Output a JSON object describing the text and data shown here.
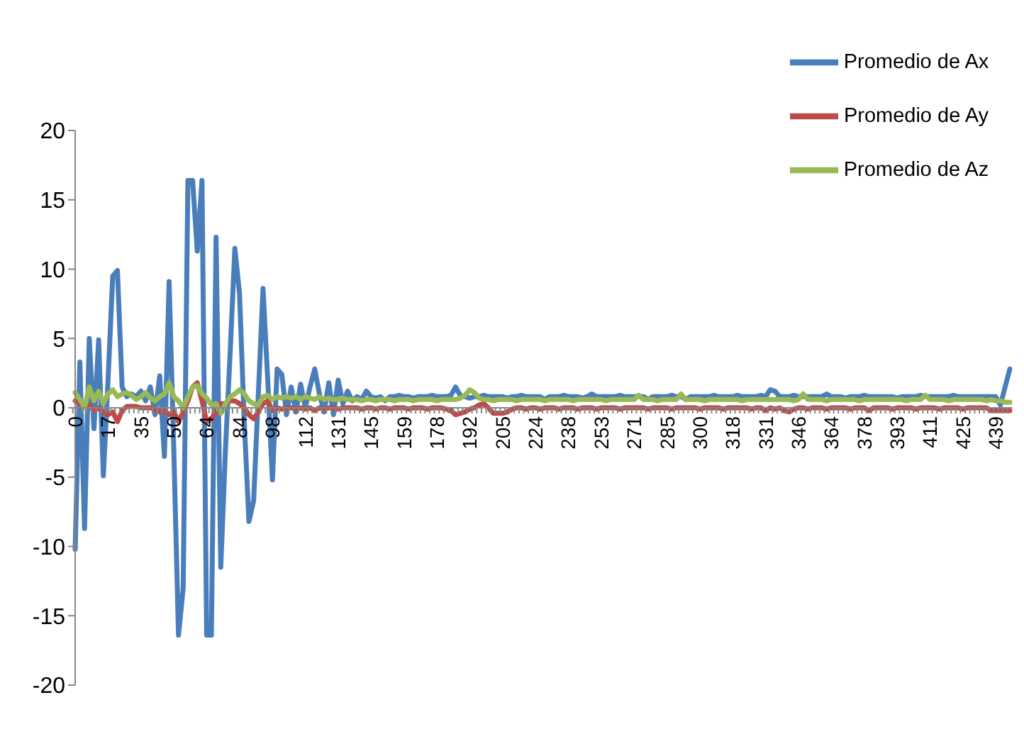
{
  "chart_data": {
    "type": "line",
    "categories": [
      "0",
      null,
      null,
      null,
      null,
      null,
      null,
      "17",
      null,
      null,
      null,
      null,
      null,
      null,
      "35",
      null,
      null,
      null,
      null,
      null,
      null,
      "50",
      null,
      null,
      null,
      null,
      null,
      null,
      "64",
      null,
      null,
      null,
      null,
      null,
      null,
      "84",
      null,
      null,
      null,
      null,
      null,
      null,
      "98",
      null,
      null,
      null,
      null,
      null,
      null,
      "112",
      null,
      null,
      null,
      null,
      null,
      null,
      "131",
      null,
      null,
      null,
      null,
      null,
      null,
      "145",
      null,
      null,
      null,
      null,
      null,
      null,
      "159",
      null,
      null,
      null,
      null,
      null,
      null,
      "178",
      null,
      null,
      null,
      null,
      null,
      null,
      "192",
      null,
      null,
      null,
      null,
      null,
      null,
      "205",
      null,
      null,
      null,
      null,
      null,
      null,
      "224",
      null,
      null,
      null,
      null,
      null,
      null,
      "238",
      null,
      null,
      null,
      null,
      null,
      null,
      "253",
      null,
      null,
      null,
      null,
      null,
      null,
      "271",
      null,
      null,
      null,
      null,
      null,
      null,
      "285",
      null,
      null,
      null,
      null,
      null,
      null,
      "300",
      null,
      null,
      null,
      null,
      null,
      null,
      "318",
      null,
      null,
      null,
      null,
      null,
      null,
      "331",
      null,
      null,
      null,
      null,
      null,
      null,
      "346",
      null,
      null,
      null,
      null,
      null,
      null,
      "364",
      null,
      null,
      null,
      null,
      null,
      null,
      "378",
      null,
      null,
      null,
      null,
      null,
      null,
      "393",
      null,
      null,
      null,
      null,
      null,
      null,
      "411",
      null,
      null,
      null,
      null,
      null,
      null,
      "425",
      null,
      null,
      null,
      null,
      null,
      null,
      "439",
      null,
      null,
      null
    ],
    "series": [
      {
        "name": "Promedio de Ax",
        "color": "#4a7ebb",
        "values": [
          -10.2,
          3.3,
          -8.7,
          5,
          -1.5,
          4.9,
          -4.9,
          2,
          9.5,
          9.9,
          1.5,
          0.8,
          1,
          0.8,
          1.2,
          0.5,
          1.5,
          -0.5,
          2.3,
          -3.5,
          9.1,
          -3,
          -16.4,
          -13,
          16.4,
          16.4,
          11.3,
          16.4,
          -16.4,
          -16.4,
          12.3,
          -11.5,
          -3,
          4,
          11.5,
          8.2,
          -1,
          -8.2,
          -6.7,
          1,
          8.6,
          2,
          -5.2,
          2.8,
          2.4,
          -0.5,
          1.5,
          -0.3,
          1.7,
          0,
          1.5,
          2.8,
          1,
          -0.3,
          1.8,
          -0.5,
          2,
          0.3,
          1.2,
          0.5,
          0.8,
          0.6,
          1.2,
          0.8,
          0.7,
          0.8,
          0.5,
          0.8,
          0.8,
          0.9,
          0.8,
          0.8,
          0.7,
          0.8,
          0.8,
          0.8,
          0.9,
          0.8,
          0.8,
          0.8,
          0.9,
          1.5,
          0.9,
          0.8,
          0.7,
          0.8,
          0.8,
          0.9,
          0.8,
          0.8,
          0.8,
          0.8,
          0.7,
          0.8,
          0.8,
          0.9,
          0.8,
          0.8,
          0.8,
          0.8,
          0.6,
          0.8,
          0.8,
          0.8,
          0.9,
          0.8,
          0.8,
          0.8,
          0.7,
          0.8,
          1,
          0.8,
          0.8,
          0.8,
          0.8,
          0.8,
          0.9,
          0.8,
          0.8,
          0.8,
          0.8,
          0.8,
          0.6,
          0.8,
          0.8,
          0.8,
          0.8,
          0.9,
          0.8,
          0.8,
          0.6,
          0.8,
          0.8,
          0.8,
          0.8,
          0.8,
          0.9,
          0.8,
          0.8,
          0.8,
          0.8,
          0.9,
          0.8,
          0.8,
          0.8,
          0.8,
          0.9,
          0.8,
          1.3,
          1.2,
          0.8,
          0.8,
          0.8,
          0.9,
          0.8,
          0.8,
          0.8,
          0.8,
          0.8,
          0.8,
          1,
          0.8,
          0.8,
          0.8,
          0.7,
          0.8,
          0.8,
          0.8,
          0.9,
          0.8,
          0.8,
          0.8,
          0.8,
          0.8,
          0.8,
          0.7,
          0.8,
          0.8,
          0.8,
          0.8,
          0.9,
          0.8,
          0.8,
          0.8,
          0.8,
          0.8,
          0.8,
          0.9,
          0.8,
          0.8,
          0.8,
          0.8,
          0.8,
          0.8,
          0.8,
          0.8,
          0.8,
          0.2,
          1.5,
          2.8
        ]
      },
      {
        "name": "Promedio de Ay",
        "color": "#be4b48",
        "values": [
          0.5,
          0.3,
          0,
          0.2,
          -0.2,
          0,
          -0.3,
          -0.5,
          -0.3,
          -1,
          -0.2,
          0.1,
          0.1,
          0.1,
          0,
          0,
          0,
          -0.1,
          -0.3,
          -0.2,
          -0.5,
          -0.3,
          -1,
          -0.3,
          0.5,
          1.5,
          1.8,
          0.5,
          -1,
          -0.8,
          -0.3,
          0.3,
          0.3,
          0.5,
          0.5,
          0.3,
          0,
          -0.5,
          -0.8,
          -0.3,
          0.3,
          0.5,
          -0.2,
          0,
          -0.1,
          0,
          0,
          -0.1,
          0,
          -0.1,
          0,
          -0.2,
          0,
          -0.1,
          0,
          0,
          -0.1,
          0,
          0,
          0,
          0,
          -0.1,
          0,
          0,
          -0.1,
          0,
          0,
          -0.1,
          0,
          0,
          0,
          -0.1,
          0,
          0,
          0,
          -0.1,
          0,
          0,
          0,
          -0.1,
          -0.2,
          -0.5,
          -0.4,
          -0.3,
          -0.1,
          0,
          0.2,
          0.3,
          0,
          -0.4,
          -0.4,
          -0.4,
          -0.3,
          -0.1,
          0,
          0,
          -0.1,
          0,
          0,
          -0.1,
          0,
          0,
          0,
          -0.1,
          0,
          0,
          0,
          -0.1,
          0,
          0,
          0,
          -0.1,
          0,
          0,
          0,
          0,
          -0.1,
          0,
          0,
          0,
          0,
          0,
          -0.1,
          0,
          0,
          0,
          0,
          -0.1,
          0,
          0,
          0,
          0,
          0,
          -0.1,
          0,
          0,
          0,
          0,
          -0.1,
          0,
          0,
          0,
          0,
          0,
          -0.1,
          0,
          0,
          -0.2,
          0,
          -0.1,
          0,
          -0.2,
          -0.3,
          -0.1,
          0,
          0,
          -0.1,
          0,
          0,
          0,
          -0.1,
          0,
          0,
          0,
          0,
          -0.1,
          0,
          0,
          0,
          -0.2,
          0,
          0,
          0,
          0,
          -0.1,
          0,
          0,
          0,
          0,
          -0.1,
          0,
          0,
          0,
          0,
          -0.1,
          0,
          0,
          0,
          0,
          -0.1,
          0,
          0,
          0,
          0,
          0,
          -0.2,
          -0.2,
          -0.2,
          -0.2,
          -0.2
        ]
      },
      {
        "name": "Promedio de Az",
        "color": "#98b954",
        "values": [
          1.1,
          0.6,
          0,
          1.5,
          0.5,
          1.2,
          0.3,
          1,
          1.3,
          0.8,
          1,
          1.1,
          0.9,
          0.6,
          0.8,
          1.1,
          0.7,
          0.5,
          0.8,
          1,
          1.8,
          0.8,
          0.5,
          0,
          0.8,
          1.5,
          1.6,
          1,
          0.7,
          0.2,
          0.3,
          -0.4,
          0.3,
          0.8,
          1,
          1.3,
          1,
          0.5,
          0.3,
          0.2,
          0.8,
          0.9,
          0.6,
          0.8,
          0.7,
          0.8,
          0.7,
          0.8,
          0.6,
          0.8,
          0.7,
          0.6,
          0.8,
          0.6,
          0.7,
          0.6,
          0.6,
          0.7,
          0.6,
          0.6,
          0.6,
          0.5,
          0.6,
          0.6,
          0.5,
          0.6,
          0.6,
          0.6,
          0.5,
          0.6,
          0.6,
          0.6,
          0.5,
          0.6,
          0.6,
          0.6,
          0.6,
          0.5,
          0.6,
          0.6,
          0.6,
          0.6,
          0.7,
          0.9,
          1.3,
          1.1,
          0.7,
          0.6,
          0.6,
          0.5,
          0.6,
          0.6,
          0.6,
          0.6,
          0.5,
          0.6,
          0.6,
          0.6,
          0.6,
          0.6,
          0.5,
          0.6,
          0.6,
          0.6,
          0.6,
          0.6,
          0.5,
          0.6,
          0.6,
          0.6,
          0.6,
          0.6,
          0.6,
          0.5,
          0.6,
          0.6,
          0.6,
          0.6,
          0.6,
          0.6,
          0.9,
          0.6,
          0.6,
          0.6,
          0.5,
          0.6,
          0.6,
          0.6,
          0.6,
          1,
          0.6,
          0.6,
          0.6,
          0.6,
          0.5,
          0.6,
          0.6,
          0.6,
          0.6,
          0.6,
          0.6,
          0.6,
          0.5,
          0.6,
          0.6,
          0.6,
          0.6,
          0.6,
          0.6,
          0.6,
          0.6,
          0.6,
          0.6,
          0.5,
          0.6,
          1,
          0.6,
          0.6,
          0.6,
          0.6,
          0.5,
          0.6,
          0.6,
          0.6,
          0.6,
          0.6,
          0.6,
          0.5,
          0.6,
          0.6,
          0.6,
          0.6,
          0.6,
          0.6,
          0.6,
          0.6,
          0.6,
          0.5,
          0.6,
          0.6,
          0.6,
          0.9,
          0.6,
          0.6,
          0.6,
          0.6,
          0.5,
          0.6,
          0.6,
          0.6,
          0.6,
          0.6,
          0.6,
          0.6,
          0.5,
          0.6,
          0.5,
          0.5,
          0.4,
          0.4
        ]
      }
    ],
    "ylim": [
      -20,
      20
    ],
    "yticks": [
      -20,
      -15,
      -10,
      -5,
      0,
      5,
      10,
      15,
      20
    ],
    "legend": "top right"
  }
}
